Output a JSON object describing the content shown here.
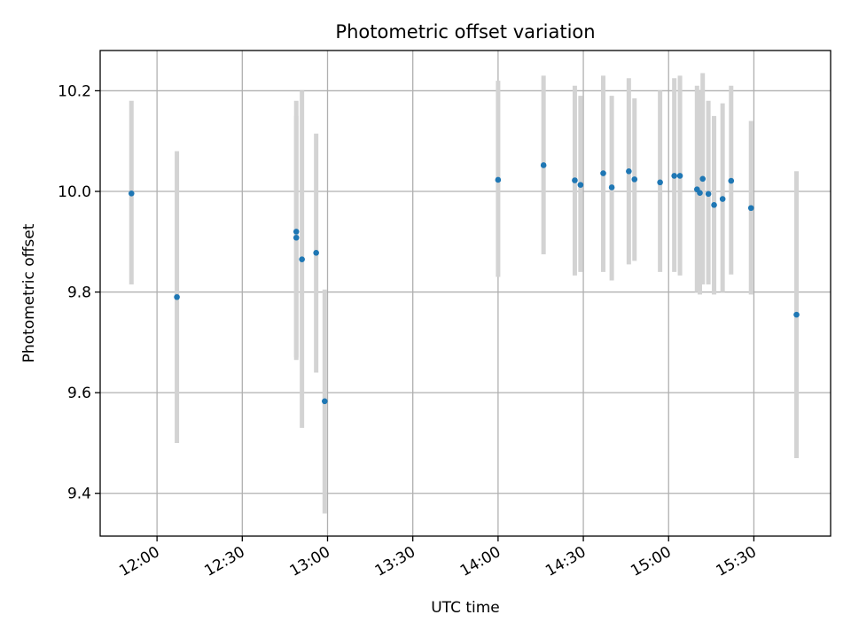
{
  "chart_data": {
    "type": "scatter",
    "title": "Photometric offset variation",
    "xlabel": "UTC time",
    "ylabel": "Photometric offset",
    "x_tick_labels": [
      "12:00",
      "12:30",
      "13:00",
      "13:30",
      "14:00",
      "14:30",
      "15:00",
      "15:30"
    ],
    "x_tick_times": [
      "12:00",
      "12:30",
      "13:00",
      "13:30",
      "14:00",
      "14:30",
      "15:00",
      "15:30"
    ],
    "y_tick_labels": [
      "9.4",
      "9.6",
      "9.8",
      "10.0",
      "10.2"
    ],
    "y_tick_values": [
      9.4,
      9.6,
      9.8,
      10.0,
      10.2
    ],
    "xlim": [
      "11:40",
      "15:57"
    ],
    "ylim": [
      9.315,
      10.28
    ],
    "grid": true,
    "point_color": "#1f77b4",
    "errorbar_color": "#d3d3d3",
    "series": [
      {
        "points": [
          {
            "time": "11:51",
            "y": 9.996,
            "err_low": 9.815,
            "err_high": 10.18
          },
          {
            "time": "12:07",
            "y": 9.79,
            "err_low": 9.5,
            "err_high": 10.08
          },
          {
            "time": "12:49",
            "y": 9.92,
            "err_low": 9.665,
            "err_high": 10.18
          },
          {
            "time": "12:49",
            "y": 9.908,
            "err_low": 9.67,
            "err_high": 10.15
          },
          {
            "time": "12:51",
            "y": 9.865,
            "err_low": 9.53,
            "err_high": 10.2
          },
          {
            "time": "12:56",
            "y": 9.878,
            "err_low": 9.64,
            "err_high": 10.115
          },
          {
            "time": "12:59",
            "y": 9.583,
            "err_low": 9.36,
            "err_high": 9.805
          },
          {
            "time": "14:00",
            "y": 10.023,
            "err_low": 9.83,
            "err_high": 10.22
          },
          {
            "time": "14:16",
            "y": 10.052,
            "err_low": 9.875,
            "err_high": 10.23
          },
          {
            "time": "14:27",
            "y": 10.022,
            "err_low": 9.833,
            "err_high": 10.21
          },
          {
            "time": "14:29",
            "y": 10.013,
            "err_low": 9.84,
            "err_high": 10.19
          },
          {
            "time": "14:37",
            "y": 10.036,
            "err_low": 9.84,
            "err_high": 10.23
          },
          {
            "time": "14:40",
            "y": 10.008,
            "err_low": 9.823,
            "err_high": 10.19
          },
          {
            "time": "14:46",
            "y": 10.04,
            "err_low": 9.855,
            "err_high": 10.225
          },
          {
            "time": "14:48",
            "y": 10.024,
            "err_low": 9.862,
            "err_high": 10.185
          },
          {
            "time": "14:57",
            "y": 10.018,
            "err_low": 9.84,
            "err_high": 10.2
          },
          {
            "time": "15:02",
            "y": 10.031,
            "err_low": 9.84,
            "err_high": 10.225
          },
          {
            "time": "15:04",
            "y": 10.031,
            "err_low": 9.833,
            "err_high": 10.23
          },
          {
            "time": "15:10",
            "y": 10.004,
            "err_low": 9.8,
            "err_high": 10.21
          },
          {
            "time": "15:11",
            "y": 9.997,
            "err_low": 9.795,
            "err_high": 10.2
          },
          {
            "time": "15:12",
            "y": 10.025,
            "err_low": 9.815,
            "err_high": 10.235
          },
          {
            "time": "15:14",
            "y": 9.995,
            "err_low": 9.815,
            "err_high": 10.18
          },
          {
            "time": "15:16",
            "y": 9.973,
            "err_low": 9.795,
            "err_high": 10.15
          },
          {
            "time": "15:19",
            "y": 9.985,
            "err_low": 9.8,
            "err_high": 10.175
          },
          {
            "time": "15:22",
            "y": 10.021,
            "err_low": 9.835,
            "err_high": 10.21
          },
          {
            "time": "15:29",
            "y": 9.967,
            "err_low": 9.795,
            "err_high": 10.14
          },
          {
            "time": "15:45",
            "y": 9.755,
            "err_low": 9.47,
            "err_high": 10.04
          }
        ]
      }
    ]
  }
}
